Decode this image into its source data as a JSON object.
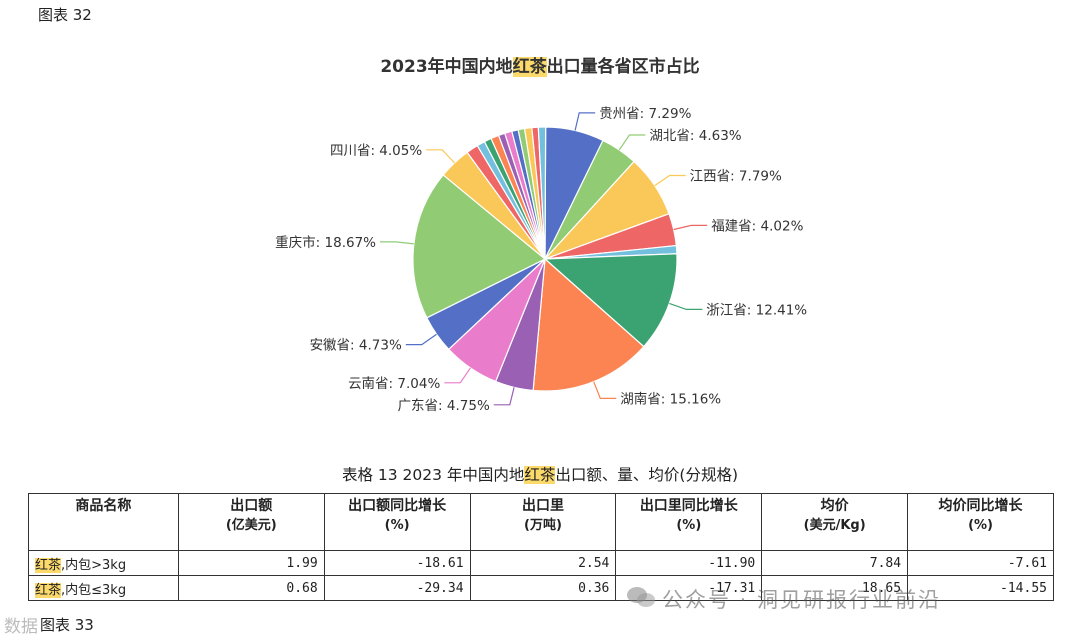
{
  "figure_label_top": "图表 32",
  "figure_label_bottom": "图表 33",
  "chart_data": {
    "type": "pie",
    "title_parts": [
      "2023年中国内地",
      "红茶",
      "出口量各省区市占比"
    ],
    "slices": [
      {
        "label": "贵州省",
        "value": 7.29,
        "value_label": "7.29%",
        "color": "#5470c6",
        "labeled": true
      },
      {
        "label": "湖北省",
        "value": 4.63,
        "value_label": "4.63%",
        "color": "#91cc75",
        "labeled": true
      },
      {
        "label": "江西省",
        "value": 7.79,
        "value_label": "7.79%",
        "color": "#fac858",
        "labeled": true
      },
      {
        "label": "福建省",
        "value": 4.02,
        "value_label": "4.02%",
        "color": "#ee6666",
        "labeled": true
      },
      {
        "label": "",
        "value": 1.0,
        "value_label": "",
        "color": "#73c0de",
        "labeled": false
      },
      {
        "label": "浙江省",
        "value": 12.41,
        "value_label": "12.41%",
        "color": "#3ba272",
        "labeled": true
      },
      {
        "label": "湖南省",
        "value": 15.16,
        "value_label": "15.16%",
        "color": "#fc8452",
        "labeled": true
      },
      {
        "label": "广东省",
        "value": 4.75,
        "value_label": "4.75%",
        "color": "#9a60b4",
        "labeled": true
      },
      {
        "label": "云南省",
        "value": 7.04,
        "value_label": "7.04%",
        "color": "#ea7ccc",
        "labeled": true
      },
      {
        "label": "安徽省",
        "value": 4.73,
        "value_label": "4.73%",
        "color": "#5470c6",
        "labeled": true
      },
      {
        "label": "重庆市",
        "value": 18.67,
        "value_label": "18.67%",
        "color": "#91cc75",
        "labeled": true
      },
      {
        "label": "四川省",
        "value": 4.05,
        "value_label": "4.05%",
        "color": "#fac858",
        "labeled": true
      },
      {
        "label": "",
        "value": 1.5,
        "value_label": "",
        "color": "#ee6666",
        "labeled": false
      },
      {
        "label": "",
        "value": 1.0,
        "value_label": "",
        "color": "#73c0de",
        "labeled": false
      },
      {
        "label": "",
        "value": 0.9,
        "value_label": "",
        "color": "#3ba272",
        "labeled": false
      },
      {
        "label": "",
        "value": 1.0,
        "value_label": "",
        "color": "#fc8452",
        "labeled": false
      },
      {
        "label": "",
        "value": 0.8,
        "value_label": "",
        "color": "#9a60b4",
        "labeled": false
      },
      {
        "label": "",
        "value": 0.9,
        "value_label": "",
        "color": "#ea7ccc",
        "labeled": false
      },
      {
        "label": "",
        "value": 0.8,
        "value_label": "",
        "color": "#5470c6",
        "labeled": false
      },
      {
        "label": "",
        "value": 0.8,
        "value_label": "",
        "color": "#91cc75",
        "labeled": false
      },
      {
        "label": "",
        "value": 0.9,
        "value_label": "",
        "color": "#fac858",
        "labeled": false
      },
      {
        "label": "",
        "value": 0.8,
        "value_label": "",
        "color": "#ee6666",
        "labeled": false
      },
      {
        "label": "",
        "value": 0.9,
        "value_label": "",
        "color": "#73c0de",
        "labeled": false
      }
    ]
  },
  "table": {
    "title_parts": [
      "表格 13 2023 年中国内地",
      "红茶",
      "出口额、量、均价(分规格)"
    ],
    "headers": [
      {
        "main": "商品名称",
        "sub": ""
      },
      {
        "main": "出口额",
        "sub": "(亿美元)"
      },
      {
        "main": "出口额同比增长",
        "sub": "(%)"
      },
      {
        "main": "出口里",
        "sub": "(万吨)"
      },
      {
        "main": "出口里同比增长",
        "sub": "(%)"
      },
      {
        "main": "均价",
        "sub": "(美元/Kg)"
      },
      {
        "main": "均价同比增长",
        "sub": "(%)"
      }
    ],
    "rows": [
      {
        "name_hl": "红茶",
        "name_rest": ",内包>3kg",
        "cells": [
          "1.99",
          "-18.61",
          "2.54",
          "-11.90",
          "7.84",
          "-7.61"
        ]
      },
      {
        "name_hl": "红茶",
        "name_rest": ",内包≤3kg",
        "cells": [
          "0.68",
          "-29.34",
          "0.36",
          "-17.31",
          "18.65",
          "-14.55"
        ]
      }
    ]
  },
  "watermark": {
    "text": "公众号 · 洞见研报行业前沿",
    "corner_text": "数据"
  }
}
